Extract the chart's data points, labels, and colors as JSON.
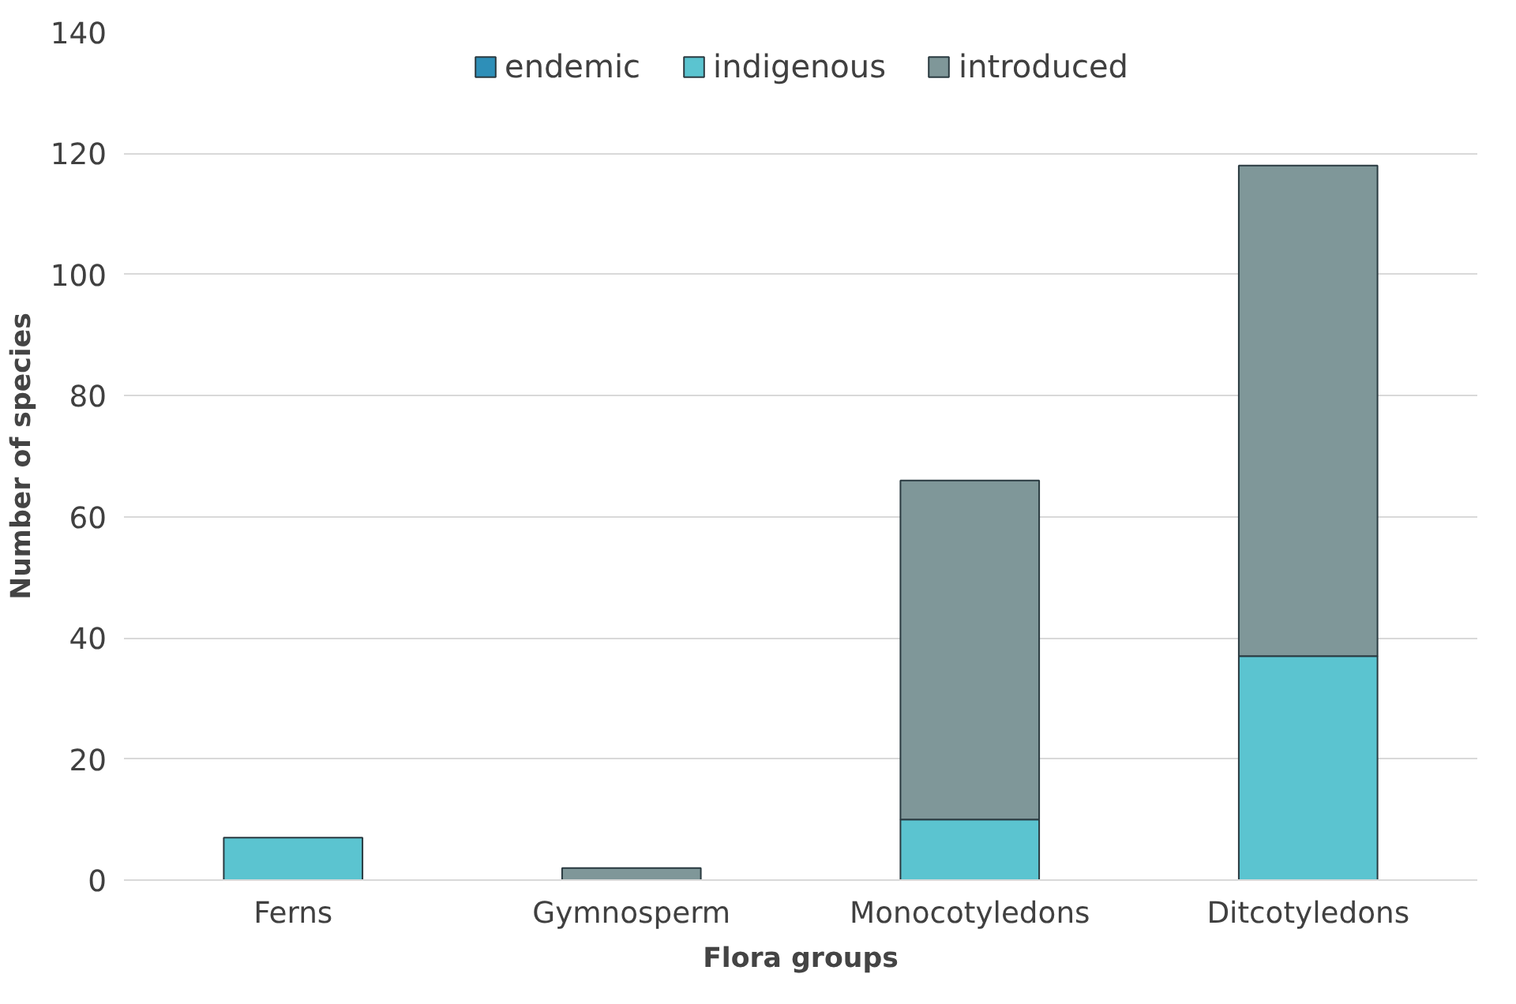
{
  "chart_data": {
    "type": "bar",
    "stacked": true,
    "xlabel": "Flora groups",
    "ylabel": "Number of species",
    "categories": [
      "Ferns",
      "Gymnosperm",
      "Monocotyledons",
      "Ditcotyledons"
    ],
    "series": [
      {
        "name": "endemic",
        "color": "#2e8fb8",
        "values": [
          0,
          0,
          0,
          0
        ]
      },
      {
        "name": "indigenous",
        "color": "#5bc4d0",
        "values": [
          7,
          0,
          10,
          37
        ]
      },
      {
        "name": "introduced",
        "color": "#7f9799",
        "values": [
          0,
          2,
          56,
          81
        ]
      }
    ],
    "ylim": [
      0,
      140
    ],
    "yticks": [
      0,
      20,
      40,
      60,
      80,
      100,
      120,
      140
    ],
    "grid": "y",
    "legend": "top"
  }
}
